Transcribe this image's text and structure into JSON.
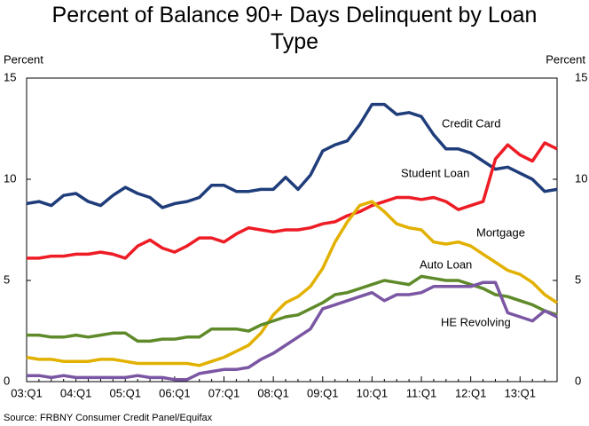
{
  "chart_data": {
    "type": "line",
    "title": "Percent of Balance 90+ Days Delinquent by Loan Type",
    "y_label": "Percent",
    "y2_label": "Percent",
    "source": "Source: FRBNY Consumer Credit Panel/Equifax",
    "categories": [
      "03:Q1",
      null,
      null,
      null,
      "04:Q1",
      null,
      null,
      null,
      "05:Q1",
      null,
      null,
      null,
      "06:Q1",
      null,
      null,
      null,
      "07:Q1",
      null,
      null,
      null,
      "08:Q1",
      null,
      null,
      null,
      "09:Q1",
      null,
      null,
      null,
      "10:Q1",
      null,
      null,
      null,
      "11:Q1",
      null,
      null,
      null,
      "12:Q1",
      null,
      null,
      null,
      "13:Q1",
      null,
      null,
      null
    ],
    "ylim": [
      0,
      15
    ],
    "yticks": [
      0,
      5,
      10,
      15
    ],
    "grid": false,
    "series": [
      {
        "name": "Credit Card",
        "color": "#1f3d7a",
        "values": [
          8.8,
          8.9,
          8.7,
          9.2,
          9.3,
          8.9,
          8.7,
          9.2,
          9.6,
          9.3,
          9.1,
          8.6,
          8.8,
          8.9,
          9.1,
          9.7,
          9.7,
          9.4,
          9.4,
          9.5,
          9.5,
          10.1,
          9.5,
          10.2,
          11.4,
          11.7,
          11.9,
          12.7,
          13.7,
          13.7,
          13.2,
          13.3,
          13.1,
          12.2,
          11.5,
          11.5,
          11.3,
          10.9,
          10.5,
          10.6,
          10.3,
          10.0,
          9.4,
          9.5
        ]
      },
      {
        "name": "Student Loan",
        "color": "#ee1c25",
        "values": [
          6.1,
          6.1,
          6.2,
          6.2,
          6.3,
          6.3,
          6.4,
          6.3,
          6.1,
          6.7,
          7.0,
          6.6,
          6.4,
          6.7,
          7.1,
          7.1,
          6.9,
          7.3,
          7.6,
          7.5,
          7.4,
          7.5,
          7.5,
          7.6,
          7.8,
          7.9,
          8.2,
          8.4,
          8.7,
          8.9,
          9.1,
          9.1,
          9.0,
          9.1,
          8.9,
          8.5,
          8.7,
          8.9,
          11.0,
          11.7,
          11.2,
          10.9,
          11.8,
          11.5
        ]
      },
      {
        "name": "Mortgage",
        "color": "#e2b100",
        "values": [
          1.2,
          1.1,
          1.1,
          1.0,
          1.0,
          1.0,
          1.1,
          1.1,
          1.0,
          0.9,
          0.9,
          0.9,
          0.9,
          0.9,
          0.8,
          1.0,
          1.2,
          1.5,
          1.8,
          2.4,
          3.3,
          3.9,
          4.2,
          4.7,
          5.6,
          6.9,
          7.9,
          8.7,
          8.9,
          8.4,
          7.8,
          7.6,
          7.5,
          6.9,
          6.8,
          6.9,
          6.7,
          6.3,
          5.9,
          5.5,
          5.3,
          4.9,
          4.3,
          3.9
        ]
      },
      {
        "name": "Auto Loan",
        "color": "#5f8a2a",
        "values": [
          2.3,
          2.3,
          2.2,
          2.2,
          2.3,
          2.2,
          2.3,
          2.4,
          2.4,
          2.0,
          2.0,
          2.1,
          2.1,
          2.2,
          2.2,
          2.6,
          2.6,
          2.6,
          2.5,
          2.8,
          3.0,
          3.2,
          3.3,
          3.6,
          3.9,
          4.3,
          4.4,
          4.6,
          4.8,
          5.0,
          4.9,
          4.8,
          5.2,
          5.1,
          5.0,
          5.0,
          4.8,
          4.6,
          4.3,
          4.2,
          4.0,
          3.8,
          3.5,
          3.3
        ]
      },
      {
        "name": "HE Revolving",
        "color": "#7b56a3",
        "values": [
          0.3,
          0.3,
          0.2,
          0.3,
          0.2,
          0.2,
          0.2,
          0.2,
          0.2,
          0.3,
          0.2,
          0.2,
          0.1,
          0.1,
          0.4,
          0.5,
          0.6,
          0.6,
          0.7,
          1.1,
          1.4,
          1.8,
          2.2,
          2.6,
          3.6,
          3.8,
          4.0,
          4.2,
          4.4,
          4.0,
          4.3,
          4.3,
          4.4,
          4.7,
          4.7,
          4.7,
          4.7,
          4.9,
          4.9,
          3.4,
          3.2,
          3.0,
          3.5,
          3.2
        ]
      }
    ]
  }
}
